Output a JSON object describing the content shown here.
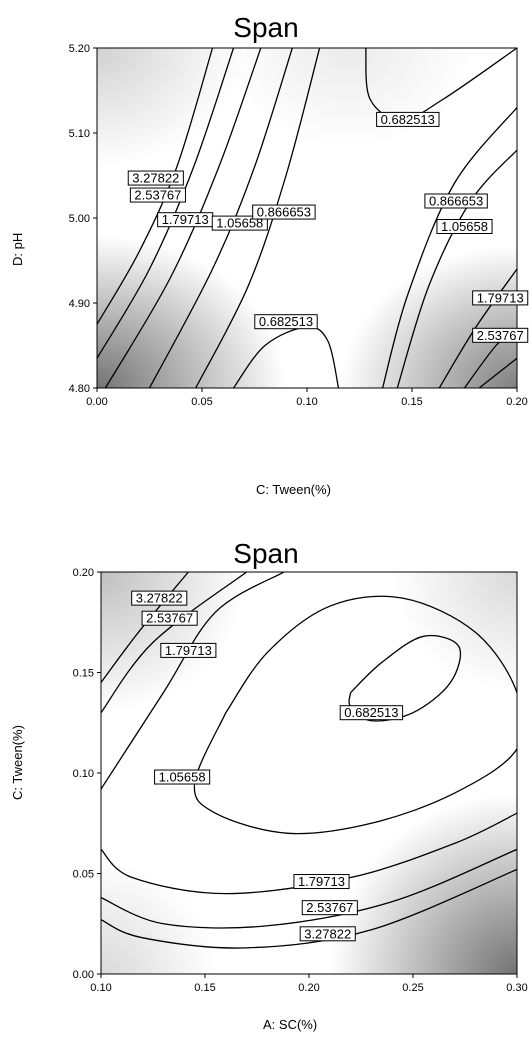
{
  "chart_data": [
    {
      "type": "contour",
      "title": "Span",
      "xlabel": "C: Tween(%)",
      "ylabel": "D: pH",
      "xlim": [
        0.0,
        0.2
      ],
      "ylim": [
        4.8,
        5.2
      ],
      "x_ticks": [
        "0.00",
        "0.05",
        "0.10",
        "0.15",
        "0.20"
      ],
      "y_ticks": [
        "4.80",
        "4.90",
        "5.00",
        "5.10",
        "5.20"
      ],
      "contour_levels": [
        "3.27822",
        "2.53767",
        "1.79713",
        "1.05658",
        "0.866653",
        "0.682513"
      ],
      "contours": [
        {
          "label": "3.27822",
          "label_at": [
            0.028,
            5.047
          ],
          "points": [
            [
              0.0,
              4.875
            ],
            [
              0.02,
              4.96
            ],
            [
              0.038,
              5.06
            ],
            [
              0.055,
              5.2
            ]
          ]
        },
        {
          "label": "2.53767",
          "label_at": [
            0.029,
            5.027
          ],
          "points": [
            [
              0.0,
              4.835
            ],
            [
              0.025,
              4.94
            ],
            [
              0.046,
              5.06
            ],
            [
              0.065,
              5.2
            ]
          ]
        },
        {
          "label": "1.79713",
          "label_at": [
            0.042,
            4.998
          ],
          "points": [
            [
              0.004,
              4.8
            ],
            [
              0.035,
              4.93
            ],
            [
              0.058,
              5.06
            ],
            [
              0.078,
              5.2
            ]
          ]
        },
        {
          "label": "1.05658",
          "label_at": [
            0.068,
            4.994
          ],
          "points": [
            [
              0.025,
              4.8
            ],
            [
              0.055,
              4.94
            ],
            [
              0.075,
              5.06
            ],
            [
              0.093,
              5.2
            ]
          ]
        },
        {
          "label": "0.866653",
          "label_at": [
            0.089,
            5.007
          ],
          "points": [
            [
              0.047,
              4.8
            ],
            [
              0.072,
              4.92
            ],
            [
              0.09,
              5.05
            ],
            [
              0.106,
              5.2
            ]
          ]
        },
        {
          "label": "0.682513",
          "label_at": [
            0.148,
            5.116
          ],
          "points": [
            [
              0.128,
              5.2
            ],
            [
              0.13,
              5.14
            ],
            [
              0.145,
              5.115
            ],
            [
              0.165,
              5.14
            ],
            [
              0.2,
              5.2
            ]
          ]
        },
        {
          "label": "0.682513",
          "label_at": [
            0.09,
            4.878
          ],
          "points": [
            [
              0.065,
              4.8
            ],
            [
              0.08,
              4.85
            ],
            [
              0.1,
              4.872
            ],
            [
              0.11,
              4.855
            ],
            [
              0.115,
              4.8
            ]
          ]
        },
        {
          "label": "0.866653",
          "label_at": [
            0.171,
            5.02
          ],
          "points": [
            [
              0.136,
              4.8
            ],
            [
              0.148,
              4.91
            ],
            [
              0.17,
              5.04
            ],
            [
              0.2,
              5.13
            ]
          ]
        },
        {
          "label": "1.05658",
          "label_at": [
            0.175,
            4.99
          ],
          "points": [
            [
              0.143,
              4.8
            ],
            [
              0.158,
              4.92
            ],
            [
              0.178,
              5.02
            ],
            [
              0.2,
              5.08
            ]
          ]
        },
        {
          "label": "1.79713",
          "label_at": [
            0.192,
            4.906
          ],
          "points": [
            [
              0.163,
              4.8
            ],
            [
              0.18,
              4.87
            ],
            [
              0.2,
              4.94
            ]
          ]
        },
        {
          "label": "2.53767",
          "label_at": [
            0.192,
            4.862
          ],
          "points": [
            [
              0.175,
              4.8
            ],
            [
              0.19,
              4.85
            ],
            [
              0.2,
              4.87
            ]
          ]
        },
        {
          "label": "3.27822",
          "label_at": null,
          "points": [
            [
              0.182,
              4.8
            ],
            [
              0.2,
              4.835
            ]
          ]
        }
      ]
    },
    {
      "type": "contour",
      "title": "Span",
      "xlabel": "A: SC(%)",
      "ylabel": "C: Tween(%)",
      "xlim": [
        0.1,
        0.3
      ],
      "ylim": [
        0.0,
        0.2
      ],
      "x_ticks": [
        "0.10",
        "0.15",
        "0.20",
        "0.25",
        "0.30"
      ],
      "y_ticks": [
        "0.00",
        "0.05",
        "0.10",
        "0.15",
        "0.20"
      ],
      "contour_levels": [
        "3.27822",
        "2.53767",
        "1.79713",
        "1.05658",
        "0.682513"
      ],
      "contours": [
        {
          "label": "3.27822",
          "label_at": [
            0.128,
            0.187
          ],
          "points": [
            [
              0.1,
              0.145
            ],
            [
              0.118,
              0.17
            ],
            [
              0.142,
              0.2
            ]
          ]
        },
        {
          "label": "2.53767",
          "label_at": [
            0.133,
            0.177
          ],
          "points": [
            [
              0.1,
              0.13
            ],
            [
              0.125,
              0.165
            ],
            [
              0.17,
              0.2
            ]
          ]
        },
        {
          "label": "1.79713",
          "label_at": [
            0.142,
            0.161
          ],
          "points": [
            [
              0.1,
              0.092
            ],
            [
              0.13,
              0.14
            ],
            [
              0.155,
              0.18
            ],
            [
              0.188,
              0.2
            ]
          ]
        },
        {
          "label": "1.05658",
          "label_at": [
            0.139,
            0.098
          ],
          "points": [
            [
              0.16,
              0.13
            ],
            [
              0.18,
              0.16
            ],
            [
              0.21,
              0.183
            ],
            [
              0.245,
              0.187
            ],
            [
              0.28,
              0.17
            ],
            [
              0.3,
              0.14
            ],
            [
              0.3,
              0.112
            ],
            [
              0.27,
              0.09
            ],
            [
              0.23,
              0.075
            ],
            [
              0.19,
              0.07
            ],
            [
              0.155,
              0.08
            ],
            [
              0.145,
              0.095
            ],
            [
              0.16,
              0.13
            ]
          ]
        },
        {
          "label": "0.682513",
          "label_at": [
            0.23,
            0.13
          ],
          "points": [
            [
              0.22,
              0.14
            ],
            [
              0.235,
              0.155
            ],
            [
              0.255,
              0.168
            ],
            [
              0.272,
              0.163
            ],
            [
              0.268,
              0.145
            ],
            [
              0.25,
              0.13
            ],
            [
              0.23,
              0.126
            ],
            [
              0.22,
              0.133
            ],
            [
              0.22,
              0.14
            ]
          ]
        },
        {
          "label": "1.79713",
          "label_at": [
            0.206,
            0.046
          ],
          "points": [
            [
              0.1,
              0.062
            ],
            [
              0.115,
              0.048
            ],
            [
              0.16,
              0.04
            ],
            [
              0.22,
              0.048
            ],
            [
              0.27,
              0.065
            ],
            [
              0.3,
              0.08
            ]
          ]
        },
        {
          "label": "2.53767",
          "label_at": [
            0.21,
            0.033
          ],
          "points": [
            [
              0.1,
              0.038
            ],
            [
              0.13,
              0.025
            ],
            [
              0.18,
              0.024
            ],
            [
              0.24,
              0.036
            ],
            [
              0.3,
              0.062
            ]
          ]
        },
        {
          "label": "3.27822",
          "label_at": [
            0.209,
            0.02
          ],
          "points": [
            [
              0.1,
              0.027
            ],
            [
              0.12,
              0.018
            ],
            [
              0.17,
              0.013
            ],
            [
              0.23,
              0.022
            ],
            [
              0.3,
              0.052
            ]
          ]
        }
      ]
    }
  ]
}
